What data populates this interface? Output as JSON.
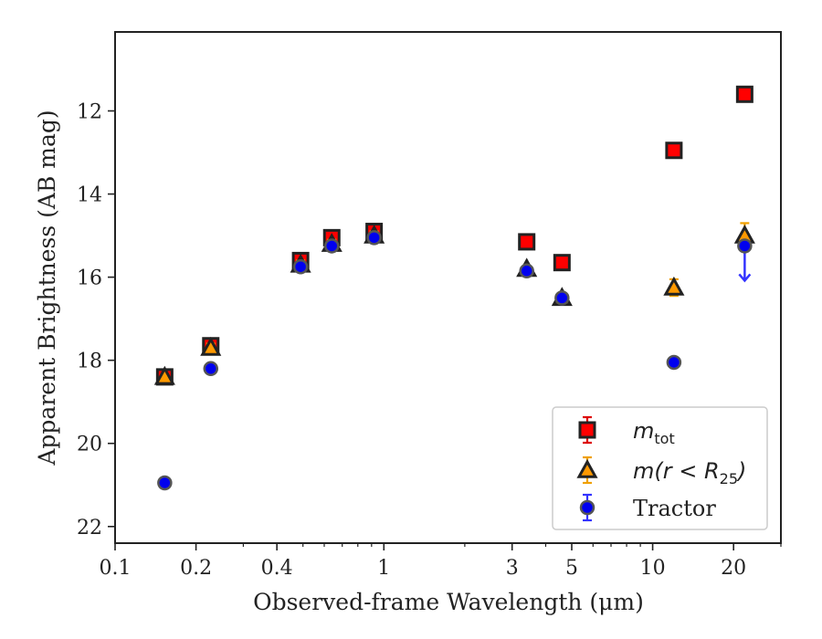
{
  "chart_data": {
    "type": "scatter",
    "xlabel": "Observed-frame Wavelength (μm)",
    "ylabel": "Apparent Brightness (AB mag)",
    "x_scale": "log",
    "xlim": [
      0.1,
      30
    ],
    "ylim": [
      22.4,
      10.1
    ],
    "x_ticks": [
      0.1,
      0.2,
      0.4,
      1,
      3,
      5,
      10,
      20
    ],
    "x_tick_labels": [
      "0.1",
      "0.2",
      "0.4",
      "1",
      "3",
      "5",
      "10",
      "20"
    ],
    "y_ticks": [
      12,
      14,
      16,
      18,
      20,
      22
    ],
    "y_tick_labels": [
      "12",
      "14",
      "16",
      "18",
      "20",
      "22"
    ],
    "grid": false,
    "legend_position": "lower-right",
    "series": [
      {
        "name": "m_tot",
        "legend_main": "m",
        "legend_sub": "tot",
        "marker": "square",
        "color": "#ff0000",
        "edge": "#222222",
        "errcolor": "#dd0000",
        "x": [
          0.153,
          0.227,
          0.49,
          0.64,
          0.92,
          3.4,
          4.6,
          12.0,
          22.0
        ],
        "y": [
          18.4,
          17.65,
          15.6,
          15.05,
          14.9,
          15.15,
          15.65,
          12.95,
          11.6
        ],
        "yerr": [
          0.05,
          0.1,
          0.12,
          0.15,
          0.15,
          0.05,
          0.05,
          0.05,
          0.05
        ]
      },
      {
        "name": "m(r < R25)",
        "legend_main": "m(r < R",
        "legend_sub": "25",
        "legend_tail": ")",
        "marker": "triangle",
        "color": "#ff9900",
        "edge": "#222222",
        "errcolor": "#f0a000",
        "x": [
          0.153,
          0.227,
          0.49,
          0.64,
          0.92,
          3.4,
          4.6,
          12.0,
          22.0
        ],
        "y": [
          18.4,
          17.7,
          15.7,
          15.2,
          15.0,
          15.8,
          16.5,
          16.25,
          15.0
        ],
        "yerr": [
          0.05,
          0.1,
          0.1,
          0.1,
          0.1,
          0.05,
          0.1,
          0.2,
          0.3
        ]
      },
      {
        "name": "Tractor",
        "legend_main": "Tractor",
        "marker": "circle",
        "color": "#0000ee",
        "edge": "#555555",
        "errcolor": "#3333ff",
        "x": [
          0.153,
          0.227,
          0.49,
          0.64,
          0.92,
          3.4,
          4.6,
          12.0,
          22.0
        ],
        "y": [
          20.95,
          18.2,
          15.75,
          15.25,
          15.05,
          15.85,
          16.5,
          18.05,
          15.25
        ],
        "yerr": [
          0.05,
          0.05,
          0.05,
          0.05,
          0.05,
          0.05,
          0.05,
          0.05,
          0.0
        ],
        "upper_limit": [
          false,
          false,
          false,
          false,
          false,
          false,
          false,
          false,
          true
        ]
      }
    ]
  }
}
